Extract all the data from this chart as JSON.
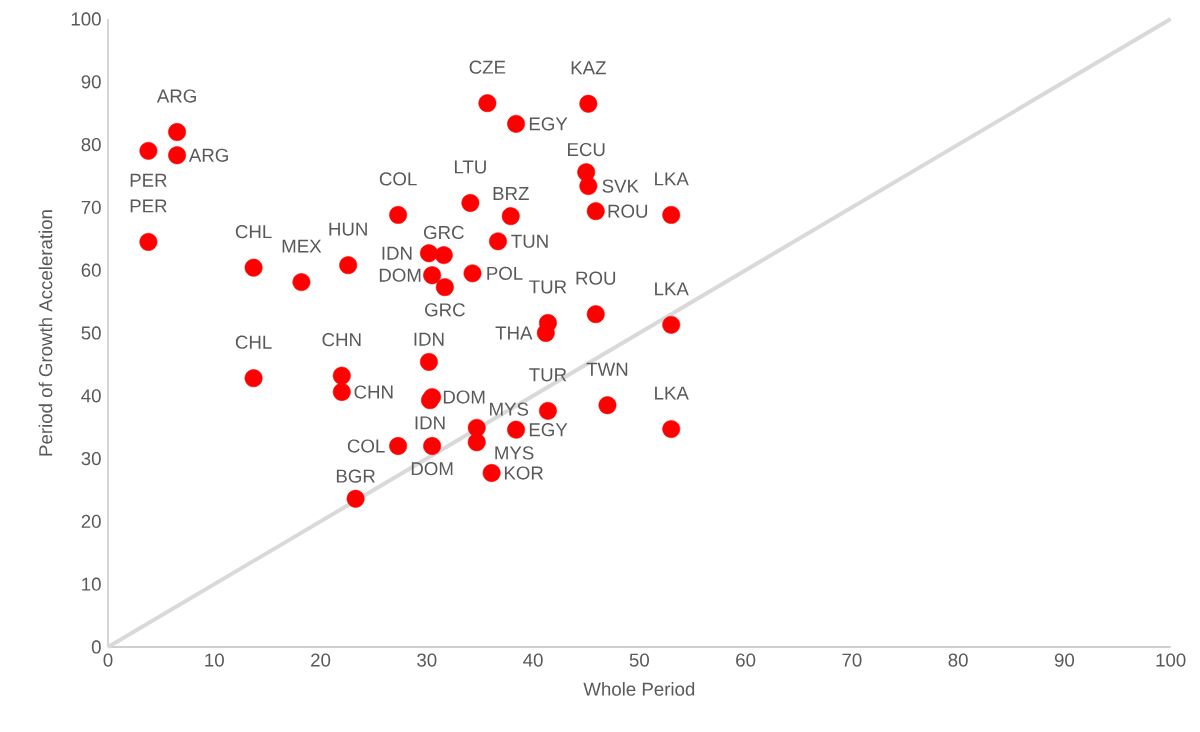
{
  "chart_data": {
    "type": "scatter",
    "xlabel": "Whole Period",
    "ylabel": "Period of Growth Acceleration",
    "xlim": [
      0,
      100
    ],
    "ylim": [
      0,
      100
    ],
    "xticks": [
      0,
      10,
      20,
      30,
      40,
      50,
      60,
      70,
      80,
      90,
      100
    ],
    "yticks": [
      0,
      10,
      20,
      30,
      40,
      50,
      60,
      70,
      80,
      90,
      100
    ],
    "grid": false,
    "series": [
      {
        "type": "line",
        "color": "#d9d9d9",
        "x": [
          0,
          100
        ],
        "values": [
          0,
          100
        ]
      },
      {
        "marker": "circle",
        "color": "#ff0000",
        "x": [
          3.8,
          6.5,
          6.5,
          3.8,
          13.7,
          18.2,
          22.6,
          13.7,
          22.0,
          22.0,
          27.3,
          30.2,
          31.6,
          30.5,
          31.7,
          34.1,
          37.9,
          36.7,
          34.3,
          35.7,
          38.4,
          45.2,
          45.0,
          45.2,
          45.9,
          53.0,
          41.4,
          41.2,
          45.9,
          53.0,
          30.2,
          30.5,
          30.3,
          27.3,
          30.5,
          34.7,
          34.7,
          36.1,
          38.4,
          41.4,
          47.0,
          53.0,
          23.3
        ],
        "values": [
          79.0,
          82.0,
          78.3,
          64.5,
          60.4,
          58.1,
          60.8,
          42.8,
          43.2,
          40.6,
          68.8,
          62.7,
          62.4,
          59.2,
          57.3,
          70.7,
          68.6,
          64.6,
          59.5,
          86.6,
          83.3,
          86.5,
          75.6,
          73.4,
          69.4,
          68.8,
          51.6,
          50.0,
          53.0,
          51.3,
          45.4,
          39.8,
          39.3,
          32.0,
          32.0,
          34.9,
          32.6,
          27.7,
          34.6,
          37.6,
          38.5,
          34.7,
          23.6
        ]
      }
    ],
    "annotations": [
      {
        "text": "PER",
        "x": 3.8,
        "y": 79.0
      },
      {
        "text": "ARG",
        "x": 6.5,
        "y": 82.0
      },
      {
        "text": "ARG",
        "x": 6.5,
        "y": 78.3
      },
      {
        "text": "PER",
        "x": 3.8,
        "y": 64.5
      },
      {
        "text": "CHL",
        "x": 13.7,
        "y": 60.4
      },
      {
        "text": "MEX",
        "x": 18.2,
        "y": 58.1
      },
      {
        "text": "HUN",
        "x": 22.6,
        "y": 60.8
      },
      {
        "text": "CHL",
        "x": 13.7,
        "y": 42.8
      },
      {
        "text": "CHN",
        "x": 22.0,
        "y": 43.2
      },
      {
        "text": "CHN",
        "x": 22.0,
        "y": 40.6
      },
      {
        "text": "COL",
        "x": 27.3,
        "y": 68.8
      },
      {
        "text": "IDN",
        "x": 30.2,
        "y": 62.7
      },
      {
        "text": "GRC",
        "x": 31.6,
        "y": 62.4
      },
      {
        "text": "DOM",
        "x": 30.5,
        "y": 59.2
      },
      {
        "text": "GRC",
        "x": 31.7,
        "y": 57.3
      },
      {
        "text": "LTU",
        "x": 34.1,
        "y": 70.7
      },
      {
        "text": "BRZ",
        "x": 37.9,
        "y": 68.6
      },
      {
        "text": "TUN",
        "x": 36.7,
        "y": 64.6
      },
      {
        "text": "POL",
        "x": 34.3,
        "y": 59.5
      },
      {
        "text": "CZE",
        "x": 35.7,
        "y": 86.6
      },
      {
        "text": "EGY",
        "x": 38.4,
        "y": 83.3
      },
      {
        "text": "KAZ",
        "x": 45.2,
        "y": 86.5
      },
      {
        "text": "ECU",
        "x": 45.0,
        "y": 75.6
      },
      {
        "text": "SVK",
        "x": 45.2,
        "y": 73.4
      },
      {
        "text": "ROU",
        "x": 45.9,
        "y": 69.4
      },
      {
        "text": "LKA",
        "x": 53.0,
        "y": 68.8
      },
      {
        "text": "TUR",
        "x": 41.4,
        "y": 51.6
      },
      {
        "text": "THA",
        "x": 41.2,
        "y": 50.0
      },
      {
        "text": "ROU",
        "x": 45.9,
        "y": 53.0
      },
      {
        "text": "LKA",
        "x": 53.0,
        "y": 51.3
      },
      {
        "text": "IDN",
        "x": 30.2,
        "y": 45.4
      },
      {
        "text": "DOM",
        "x": 30.5,
        "y": 39.8
      },
      {
        "text": "IDN",
        "x": 30.3,
        "y": 39.3
      },
      {
        "text": "COL",
        "x": 27.3,
        "y": 32.0
      },
      {
        "text": "DOM",
        "x": 30.5,
        "y": 32.0
      },
      {
        "text": "MYS",
        "x": 34.7,
        "y": 34.9
      },
      {
        "text": "MYS",
        "x": 34.7,
        "y": 32.6
      },
      {
        "text": "KOR",
        "x": 36.1,
        "y": 27.7
      },
      {
        "text": "EGY",
        "x": 38.4,
        "y": 34.6
      },
      {
        "text": "TUR",
        "x": 41.4,
        "y": 37.6
      },
      {
        "text": "TWN",
        "x": 47.0,
        "y": 38.5
      },
      {
        "text": "LKA",
        "x": 53.0,
        "y": 34.7
      },
      {
        "text": "BGR",
        "x": 23.3,
        "y": 23.6
      }
    ]
  }
}
